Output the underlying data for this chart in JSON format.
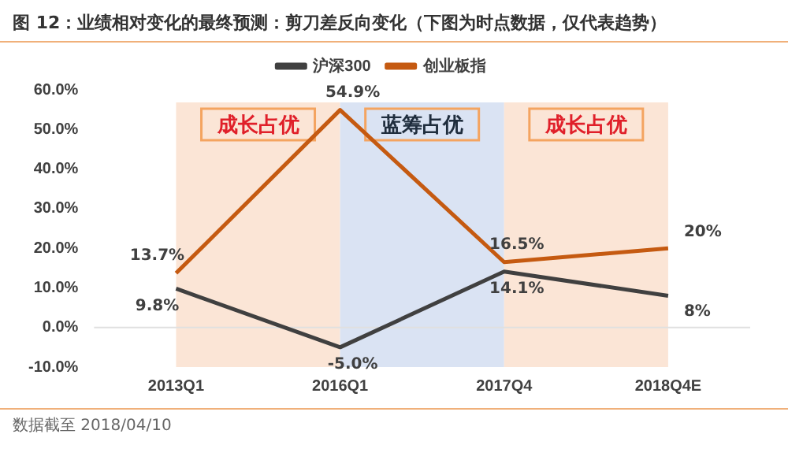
{
  "chart_data": {
    "type": "line",
    "title": "图 12：业绩相对变化的最终预测：剪刀差反向变化（下图为时点数据，仅代表趋势）",
    "categories": [
      "2013Q1",
      "2016Q1",
      "2017Q4",
      "2018Q4E"
    ],
    "series": [
      {
        "name": "沪深300",
        "color": "#404040",
        "values": [
          9.8,
          -5.0,
          14.1,
          8
        ],
        "value_labels": [
          "9.8%",
          "-5.0%",
          "14.1%",
          "8%"
        ]
      },
      {
        "name": "创业板指",
        "color": "#c55a11",
        "values": [
          13.7,
          54.9,
          16.5,
          20
        ],
        "value_labels": [
          "13.7%",
          "54.9%",
          "16.5%",
          "20%"
        ]
      }
    ],
    "ylim": [
      -10,
      60
    ],
    "yticks": [
      {
        "value": -10,
        "label": "-10.0%"
      },
      {
        "value": 0,
        "label": "0.0%"
      },
      {
        "value": 10,
        "label": "10.0%"
      },
      {
        "value": 20,
        "label": "20.0%"
      },
      {
        "value": 30,
        "label": "30.0%"
      },
      {
        "value": 40,
        "label": "40.0%"
      },
      {
        "value": 50,
        "label": "50.0%"
      },
      {
        "value": 60,
        "label": "60.0%"
      }
    ],
    "bands": [
      {
        "axis": "x",
        "from": "2013Q1",
        "to": "2016Q1",
        "label": "成长占优",
        "color": "#fbe5d6"
      },
      {
        "axis": "x",
        "from": "2016Q1",
        "to": "2017Q4",
        "label": "蓝筹占优",
        "color": "#dae3f3"
      },
      {
        "axis": "x",
        "from": "2017Q4",
        "to": "2018Q4E",
        "label": "成长占优",
        "color": "#fbe5d6"
      }
    ],
    "ref_lines": [
      {
        "axis": "y",
        "value": 0,
        "color": "#e0e0e0"
      }
    ],
    "annotations": [
      "数据截至 2018/04/10"
    ],
    "grid": false,
    "legend": "top",
    "marker": "none",
    "line_style": "solid"
  }
}
